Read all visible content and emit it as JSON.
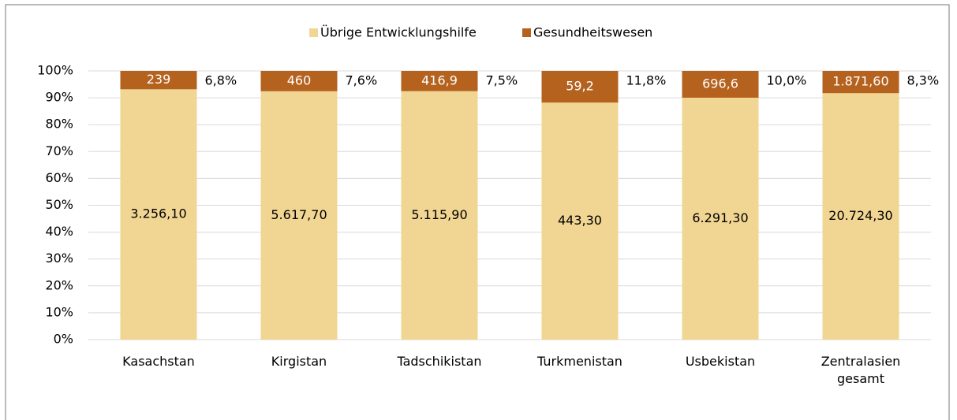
{
  "chart_data": {
    "type": "bar",
    "stacking": "percent",
    "categories": [
      "Kasachstan",
      "Kirgistan",
      "Tadschikistan",
      "Turkmenistan",
      "Usbekistan",
      "Zentralasien gesamt"
    ],
    "series": [
      {
        "name": "Übrige Entwicklungshilfe",
        "color": "#f1d592",
        "values": [
          3256.1,
          5617.7,
          5115.9,
          443.3,
          6291.3,
          20724.3
        ],
        "value_labels": [
          "3.256,10",
          "5.617,70",
          "5.115,90",
          "443,30",
          "6.291,30",
          "20.724,30"
        ]
      },
      {
        "name": "Gesundheitswesen",
        "color": "#b5621f",
        "values": [
          239,
          460,
          416.9,
          59.2,
          696.6,
          1871.6
        ],
        "value_labels": [
          "239",
          "460",
          "416,9",
          "59,2",
          "696,6",
          "1.871,60"
        ]
      }
    ],
    "shares": [
      {
        "value": 6.8,
        "label": "6,8%"
      },
      {
        "value": 7.6,
        "label": "7,6%"
      },
      {
        "value": 7.5,
        "label": "7,5%"
      },
      {
        "value": 11.8,
        "label": "11,8%"
      },
      {
        "value": 10.0,
        "label": "10,0%"
      },
      {
        "value": 8.3,
        "label": "8,3%"
      }
    ],
    "ylim": [
      0,
      100
    ],
    "yticks": [
      {
        "value": 0,
        "label": "0%"
      },
      {
        "value": 10,
        "label": "10%"
      },
      {
        "value": 20,
        "label": "20%"
      },
      {
        "value": 30,
        "label": "30%"
      },
      {
        "value": 40,
        "label": "40%"
      },
      {
        "value": 50,
        "label": "50%"
      },
      {
        "value": 60,
        "label": "60%"
      },
      {
        "value": 70,
        "label": "70%"
      },
      {
        "value": 80,
        "label": "80%"
      },
      {
        "value": 90,
        "label": "90%"
      },
      {
        "value": 100,
        "label": "100%"
      }
    ],
    "grid": true,
    "legend": "top"
  }
}
